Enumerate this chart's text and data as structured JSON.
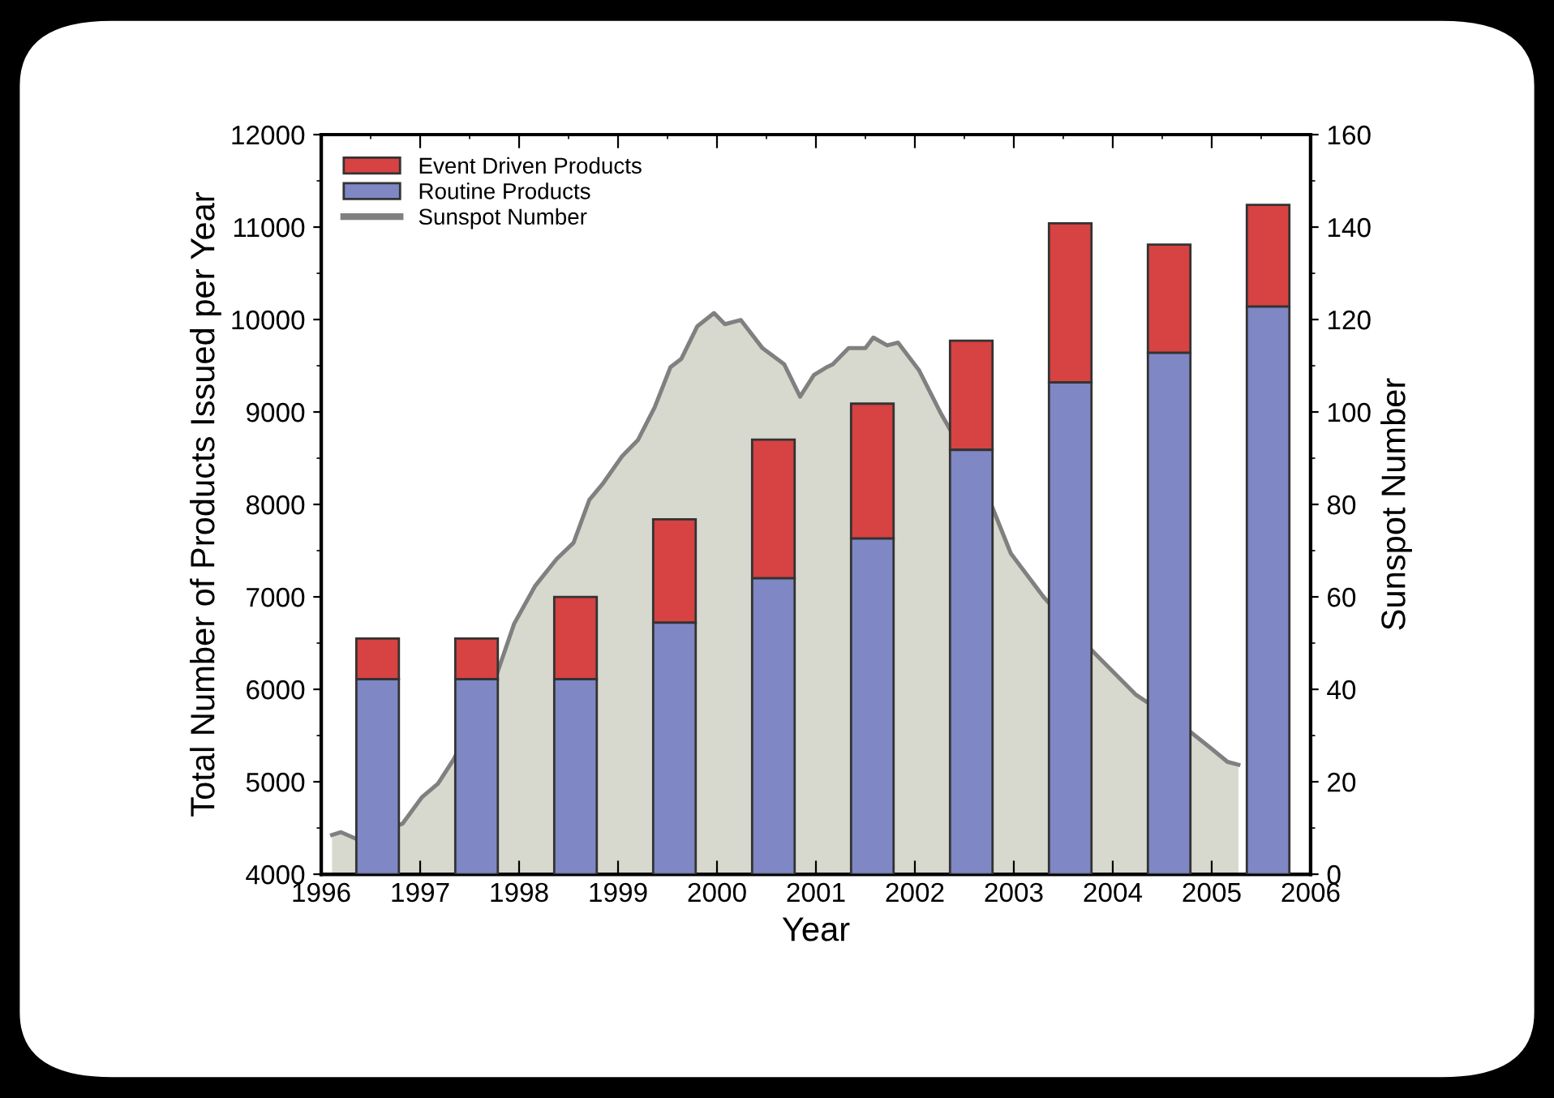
{
  "chart_data": {
    "type": "bar",
    "xlabel": "Year",
    "ylabel": "Total Number of Products Issued per Year",
    "y2label": "Sunspot Number",
    "xlim": [
      1996,
      2006
    ],
    "xticks": [
      1996,
      1997,
      1998,
      1999,
      2000,
      2001,
      2002,
      2003,
      2004,
      2005,
      2006
    ],
    "ylim": [
      4000,
      12000
    ],
    "yticks": [
      4000,
      5000,
      6000,
      7000,
      8000,
      9000,
      10000,
      11000,
      12000
    ],
    "y2lim": [
      0,
      160
    ],
    "y2ticks": [
      0,
      20,
      40,
      60,
      80,
      100,
      120,
      140,
      160
    ],
    "legend": "top left",
    "grid": false,
    "x": [
      1996.57,
      1997.57,
      1998.57,
      1999.57,
      2000.57,
      2001.57,
      2002.57,
      2003.57,
      2004.57,
      2005.57
    ],
    "series": [
      {
        "name": "Event Driven Products",
        "color": "#d74242",
        "base": [
          6110,
          6110,
          6110,
          6720,
          7200,
          7630,
          8590,
          9320,
          9640,
          10140
        ],
        "values": [
          440,
          440,
          890,
          1120,
          1500,
          1460,
          1180,
          1720,
          1170,
          1100
        ]
      },
      {
        "name": "Routine Products",
        "color": "#7f87c4",
        "values": [
          6110,
          6110,
          6110,
          6720,
          7200,
          7630,
          8590,
          9320,
          9640,
          10140
        ]
      },
      {
        "name": "Sunspot Number",
        "type": "area",
        "axis": "y2",
        "color": "#808080",
        "x": [
          1996.11,
          1996.2,
          1996.36,
          1996.82,
          1997.02,
          1997.18,
          1997.34,
          1997.78,
          1997.95,
          1998.16,
          1998.38,
          1998.55,
          1998.71,
          1998.85,
          1999.04,
          1999.2,
          1999.37,
          1999.53,
          1999.64,
          1999.8,
          1999.97,
          2000.08,
          2000.24,
          2000.46,
          2000.68,
          2000.84,
          2000.98,
          2001.11,
          2001.17,
          2001.33,
          2001.5,
          2001.58,
          2001.72,
          2001.83,
          2002.04,
          2002.26,
          2002.73,
          2002.97,
          2003.3,
          2003.74,
          2003.9,
          2004.23,
          2004.72,
          2004.99,
          2005.16,
          2005.27
        ],
        "values": [
          8.5,
          9.1,
          7.6,
          10.9,
          16.7,
          19.6,
          24.9,
          43.6,
          54.2,
          62.3,
          68.2,
          71.7,
          81,
          84.6,
          90.4,
          93.9,
          101,
          109.7,
          111.5,
          118.5,
          121.4,
          119,
          119.9,
          113.8,
          110.3,
          103.3,
          108,
          109.7,
          110.3,
          113.8,
          113.8,
          116.1,
          114.4,
          115,
          109.1,
          99.8,
          82.2,
          69.4,
          60,
          49.5,
          46,
          38.9,
          31.9,
          27.3,
          24.3,
          23.7
        ]
      }
    ]
  }
}
